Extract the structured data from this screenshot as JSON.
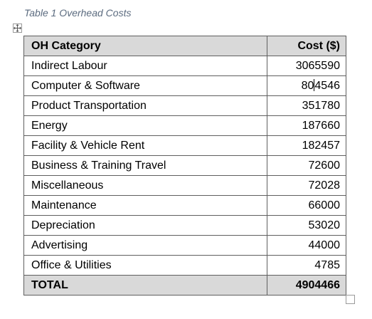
{
  "caption": "Table 1 Overhead Costs",
  "table": {
    "headers": [
      "OH Category",
      "Cost ($)"
    ],
    "rows": [
      {
        "category": "Indirect Labour",
        "cost": "3065590"
      },
      {
        "category": "Computer & Software",
        "cost_before_cursor": "80",
        "cost_after_cursor": "4546"
      },
      {
        "category": "Product Transportation",
        "cost": "351780"
      },
      {
        "category": "Energy",
        "cost": "187660"
      },
      {
        "category": "Facility & Vehicle Rent",
        "cost": "182457"
      },
      {
        "category": "Business & Training Travel",
        "cost": "72600"
      },
      {
        "category": "Miscellaneous",
        "cost": "72028"
      },
      {
        "category": "Maintenance",
        "cost": "66000"
      },
      {
        "category": "Depreciation",
        "cost": "53020"
      },
      {
        "category": "Advertising",
        "cost": "44000"
      },
      {
        "category": "Office & Utilities",
        "cost": "4785"
      }
    ],
    "total": {
      "label": "TOTAL",
      "cost": "4904466"
    }
  },
  "icons": {
    "move_handle": "move-arrows-icon",
    "resize_handle": "resize-square-icon"
  },
  "colors": {
    "caption": "#5b6b7f",
    "header_fill": "#d9d9d9",
    "border": "#5f5f5f"
  }
}
